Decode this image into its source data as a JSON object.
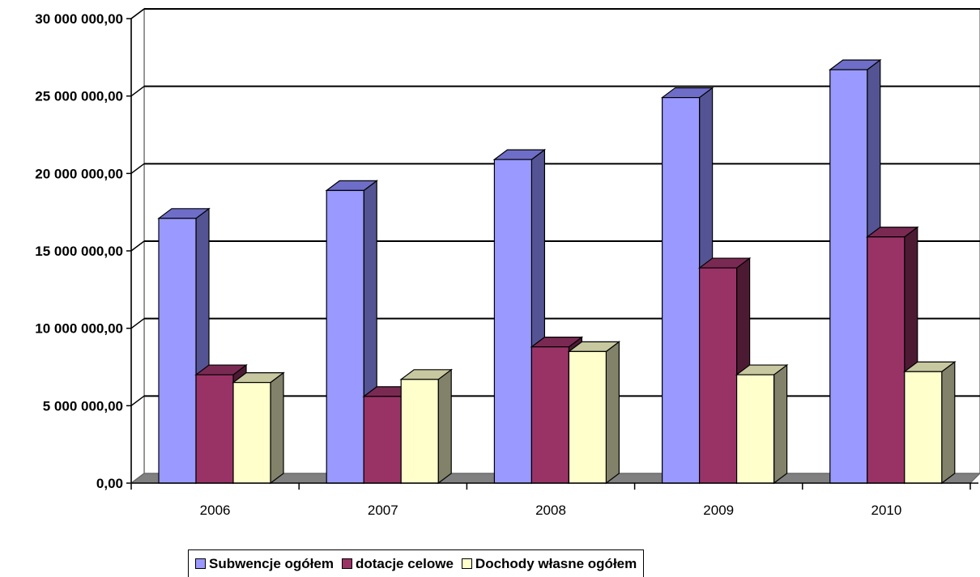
{
  "chart_data": {
    "type": "bar",
    "categories": [
      "2006",
      "2007",
      "2008",
      "2009",
      "2010"
    ],
    "series": [
      {
        "name": "Subwencje ogółem",
        "values": [
          17100000,
          18900000,
          20900000,
          24900000,
          26700000
        ],
        "color": "#9999FF",
        "side_color": "#545494",
        "top_color": "#6E6EC8"
      },
      {
        "name": "dotacje celowe",
        "values": [
          7000000,
          5600000,
          8800000,
          13900000,
          15900000
        ],
        "color": "#993366",
        "side_color": "#4D1A33",
        "top_color": "#7A2A52"
      },
      {
        "name": "Dochody własne ogółem",
        "values": [
          6500000,
          6700000,
          8500000,
          7000000,
          7200000
        ],
        "color": "#FFFFCC",
        "side_color": "#82826A",
        "top_color": "#C8C8A0"
      }
    ],
    "y_tick_labels": [
      "0,00",
      "5 000 000,00",
      "10 000 000,00",
      "15 000 000,00",
      "20 000 000,00",
      "25 000 000,00",
      "30 000 000,00"
    ],
    "ylim": [
      0,
      30000000
    ],
    "y_tick_step": 5000000,
    "grid": true,
    "legend_position": "bottom",
    "title": "",
    "xlabel": "",
    "ylabel": ""
  }
}
